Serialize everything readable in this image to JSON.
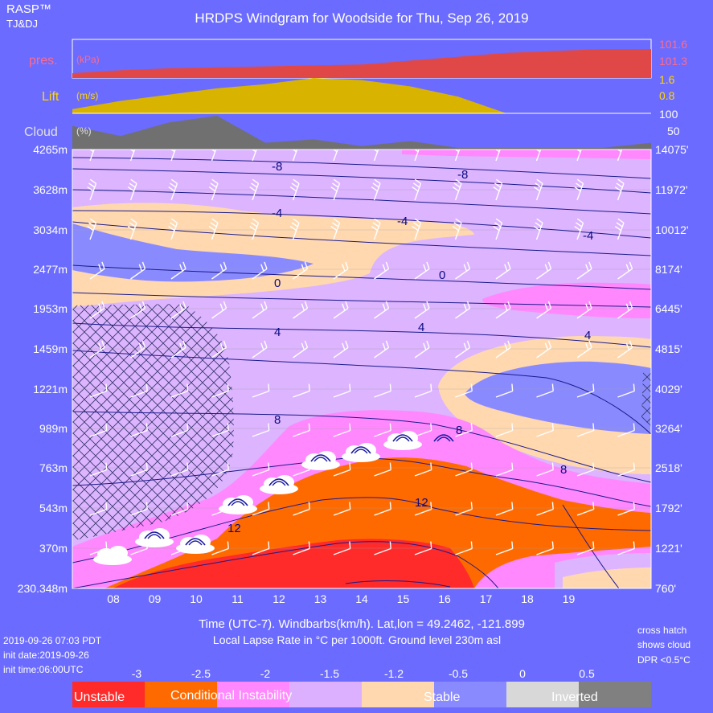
{
  "header": {
    "brand": "RASP™",
    "credit": "TJ&DJ",
    "title": "HRDPS Windgram for Woodside for Thu, Sep 26, 2019"
  },
  "panels": {
    "pressure": {
      "label": "pres.",
      "unit": "(kPa)",
      "ticks": [
        "101.6",
        "101.3"
      ],
      "color": "#e84040"
    },
    "lift": {
      "label": "Lift",
      "unit": "(m/s)",
      "ticks": [
        "1.6",
        "0.8"
      ],
      "color": "#ddb800"
    },
    "cloud": {
      "label": "Cloud",
      "unit": "(%)",
      "ticks": [
        "100",
        "50"
      ],
      "color": "#6e6e6e"
    }
  },
  "axes": {
    "left_ticks": [
      "4265m",
      "3628m",
      "3034m",
      "2477m",
      "1953m",
      "1459m",
      "1221m",
      "989m",
      "763m",
      "543m",
      "370m",
      "230.348m"
    ],
    "right_ticks": [
      "14075'",
      "11972'",
      "10012'",
      "8174'",
      "6445'",
      "4815'",
      "4029'",
      "3264'",
      "2518'",
      "1792'",
      "1221'",
      "760'"
    ],
    "x_ticks": [
      "08",
      "09",
      "10",
      "11",
      "12",
      "13",
      "14",
      "15",
      "16",
      "17",
      "18",
      "19"
    ],
    "xlabel": "Time (UTC-7). Windbarbs(km/h). Lat,lon = 49.2462, -121.899",
    "sublabel": "Local Lapse Rate in °C per 1000ft.   Ground level 230m asl"
  },
  "chart_data": {
    "type": "heatmap",
    "title": "HRDPS Windgram for Woodside for Thu, Sep 26, 2019",
    "x_hours": [
      "08",
      "09",
      "10",
      "11",
      "12",
      "13",
      "14",
      "15",
      "16",
      "17",
      "18",
      "19"
    ],
    "pressure_kPa": [
      101.35,
      101.38,
      101.4,
      101.41,
      101.42,
      101.43,
      101.44,
      101.48,
      101.52,
      101.56,
      101.58,
      101.6,
      101.6
    ],
    "lift_ms": [
      0.2,
      0.6,
      0.9,
      1.2,
      1.4,
      1.7,
      1.6,
      1.3,
      0.8,
      0.0,
      0.0,
      0.0,
      0.0
    ],
    "cloud_pct": [
      70,
      40,
      80,
      100,
      20,
      30,
      10,
      25,
      5,
      5,
      5,
      5,
      20
    ],
    "temperature_contours_C": [
      -8,
      -4,
      0,
      4,
      8,
      12
    ],
    "contour_labels": [
      "-8",
      "-8",
      "-4",
      "-4",
      "-4",
      "0",
      "0",
      "4",
      "4",
      "4",
      "8",
      "8",
      "8",
      "12",
      "12"
    ]
  },
  "notes": {
    "cross_hatch": [
      "cross hatch",
      "shows cloud",
      "DPR <0.5°C"
    ],
    "dates": [
      "2019-09-26 07:03 PDT",
      "init date:2019-09-26",
      "init time:06:00UTC"
    ]
  },
  "legend": {
    "ticks": [
      "-3",
      "-2.5",
      "-2",
      "-1.5",
      "-1.2",
      "-0.5",
      "0",
      "0.5"
    ],
    "labels": {
      "unstable": "Unstable",
      "conditional": "Conditional Instability",
      "stable": "Stable",
      "inverted": "Inverted"
    },
    "colors": [
      "#ff2a2a",
      "#ff6a00",
      "#ff88ff",
      "#ddb0ff",
      "#ffd8b0",
      "#8a8aff",
      "#d8d8d8",
      "#808080"
    ]
  },
  "colors": {
    "background": "#6b6bff",
    "contour": "#00008b",
    "barb": "#ffffff"
  }
}
